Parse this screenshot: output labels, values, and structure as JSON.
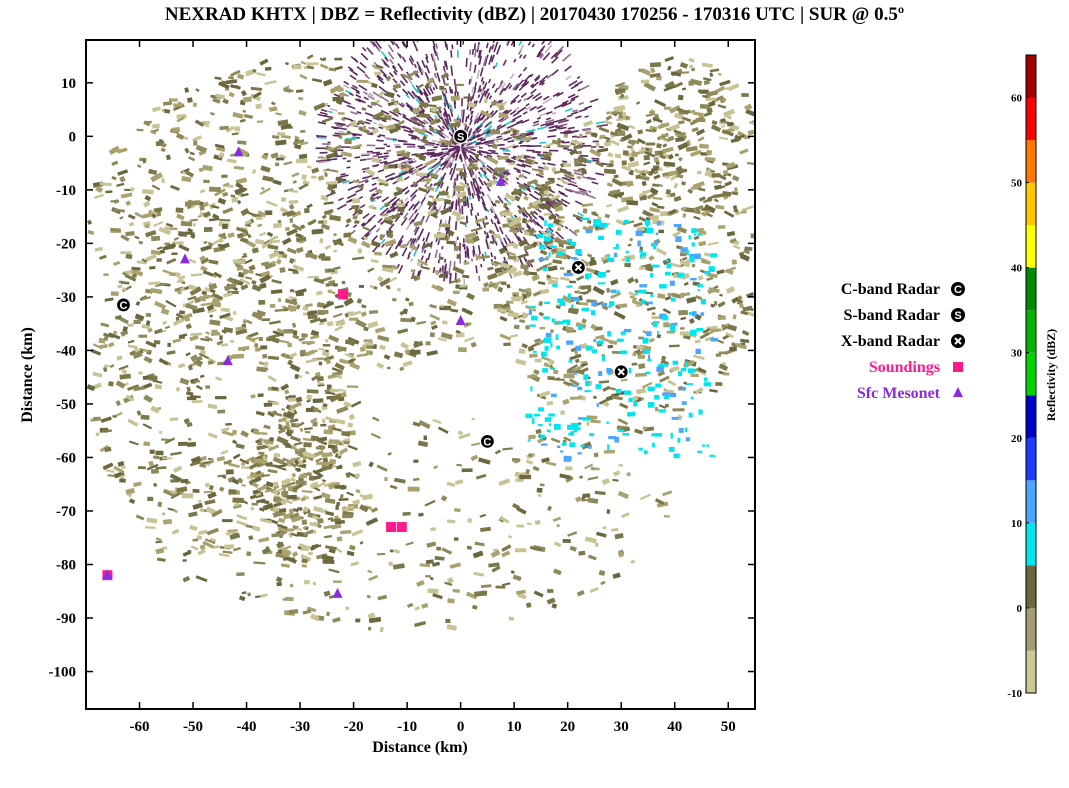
{
  "title": "NEXRAD KHTX | DBZ = Reflectivity (dBZ) | 20170430 170256 - 170316 UTC | SUR @ 0.5º",
  "chart_data": {
    "type": "scatter",
    "title": "NEXRAD KHTX | DBZ = Reflectivity (dBZ) | 20170430 170256 - 170316 UTC | SUR @ 0.5º",
    "xlabel": "Distance (km)",
    "ylabel": "Distance (km)",
    "xlim": [
      -70,
      55
    ],
    "ylim": [
      -107,
      18
    ],
    "xticks": [
      -60,
      -50,
      -40,
      -30,
      -20,
      -10,
      0,
      10,
      20,
      30,
      40,
      50
    ],
    "yticks": [
      10,
      0,
      -10,
      -20,
      -30,
      -40,
      -50,
      -60,
      -70,
      -80,
      -90,
      -100
    ],
    "grid": false,
    "legend_position": "right",
    "series": [
      {
        "name": "C-band Radar",
        "marker": "C",
        "color": "#000000",
        "points": [
          {
            "x": -63,
            "y": -31.5
          },
          {
            "x": 5,
            "y": -57
          }
        ]
      },
      {
        "name": "S-band Radar",
        "marker": "S",
        "color": "#000000",
        "points": [
          {
            "x": 0,
            "y": 0
          }
        ]
      },
      {
        "name": "X-band Radar",
        "marker": "X",
        "color": "#000000",
        "points": [
          {
            "x": 22,
            "y": -24.5
          },
          {
            "x": 30,
            "y": -44
          }
        ]
      },
      {
        "name": "Soundings",
        "marker": "square",
        "color": "#ff1a8c",
        "points": [
          {
            "x": -22,
            "y": -29.5
          },
          {
            "x": -13,
            "y": -73
          },
          {
            "x": -11,
            "y": -73
          },
          {
            "x": -66,
            "y": -82
          }
        ]
      },
      {
        "name": "Sfc Mesonet",
        "marker": "triangle",
        "color": "#8a2be2",
        "points": [
          {
            "x": -41.5,
            "y": -3
          },
          {
            "x": -51.5,
            "y": -23
          },
          {
            "x": -43.5,
            "y": -42
          },
          {
            "x": 0,
            "y": -34.5
          },
          {
            "x": 7.5,
            "y": -8.5
          },
          {
            "x": -66,
            "y": -82
          },
          {
            "x": -23,
            "y": -85.5
          }
        ]
      }
    ],
    "colorbar": {
      "label": "Reflectivity (dBZ)",
      "min": -10,
      "max": 65,
      "ticks": [
        -10,
        0,
        10,
        20,
        30,
        40,
        50,
        60
      ],
      "bins": [
        {
          "from": -10,
          "to": -5,
          "color": "#ccc998"
        },
        {
          "from": -5,
          "to": 0,
          "color": "#a29d72"
        },
        {
          "from": 0,
          "to": 5,
          "color": "#6b6840"
        },
        {
          "from": 5,
          "to": 10,
          "color": "#00e5ee"
        },
        {
          "from": 10,
          "to": 15,
          "color": "#4aa6ff"
        },
        {
          "from": 15,
          "to": 20,
          "color": "#1e3cff"
        },
        {
          "from": 20,
          "to": 25,
          "color": "#0000c8"
        },
        {
          "from": 25,
          "to": 30,
          "color": "#00d400"
        },
        {
          "from": 30,
          "to": 35,
          "color": "#00b400"
        },
        {
          "from": 35,
          "to": 40,
          "color": "#008c00"
        },
        {
          "from": 40,
          "to": 45,
          "color": "#ffff00"
        },
        {
          "from": 45,
          "to": 50,
          "color": "#ffc800"
        },
        {
          "from": 50,
          "to": 55,
          "color": "#ff7800"
        },
        {
          "from": 55,
          "to": 60,
          "color": "#ff0000"
        },
        {
          "from": 60,
          "to": 65,
          "color": "#a00000"
        }
      ]
    },
    "echo_regions": [
      {
        "desc": "clutter",
        "cx": 0,
        "cy": -3,
        "rx": 22,
        "ry": 20,
        "color": "#5e2a5e"
      },
      {
        "desc": "light",
        "cx": -20,
        "cy": -15,
        "rx": 50,
        "ry": 22,
        "color": "#a9a26e"
      },
      {
        "desc": "light",
        "cx": -45,
        "cy": -45,
        "rx": 22,
        "ry": 40,
        "color": "#7b7749"
      },
      {
        "desc": "light",
        "cx": 30,
        "cy": -30,
        "rx": 25,
        "ry": 30,
        "color": "#a9a26e"
      }
    ]
  }
}
